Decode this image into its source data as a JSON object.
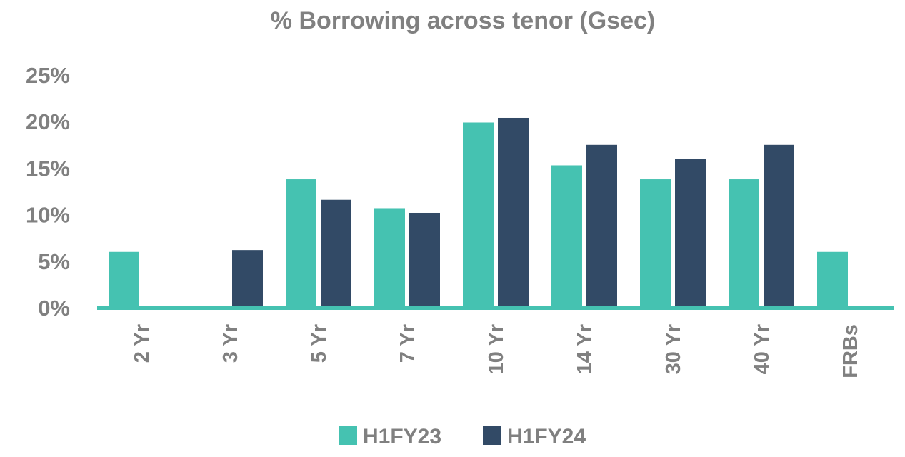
{
  "chart_data": {
    "type": "bar",
    "title": "% Borrowing across tenor (Gsec)",
    "categories": [
      "2 Yr",
      "3 Yr",
      "5 Yr",
      "7 Yr",
      "10 Yr",
      "14 Yr",
      "30 Yr",
      "40 Yr",
      "FRBs"
    ],
    "series": [
      {
        "name": "H1FY23",
        "color": "#45c2b1",
        "values": [
          6.0,
          0,
          13.8,
          10.7,
          19.9,
          15.3,
          13.8,
          13.8,
          6.0
        ]
      },
      {
        "name": "H1FY24",
        "color": "#324a66",
        "values": [
          0,
          6.2,
          11.6,
          10.2,
          20.4,
          17.5,
          16.0,
          17.5,
          0
        ]
      }
    ],
    "y_ticks": [
      "0%",
      "5%",
      "10%",
      "15%",
      "20%",
      "25%"
    ],
    "ylim": [
      0,
      25
    ],
    "legend_position": "bottom",
    "grid": false,
    "axis_color": "#45c2b1"
  }
}
